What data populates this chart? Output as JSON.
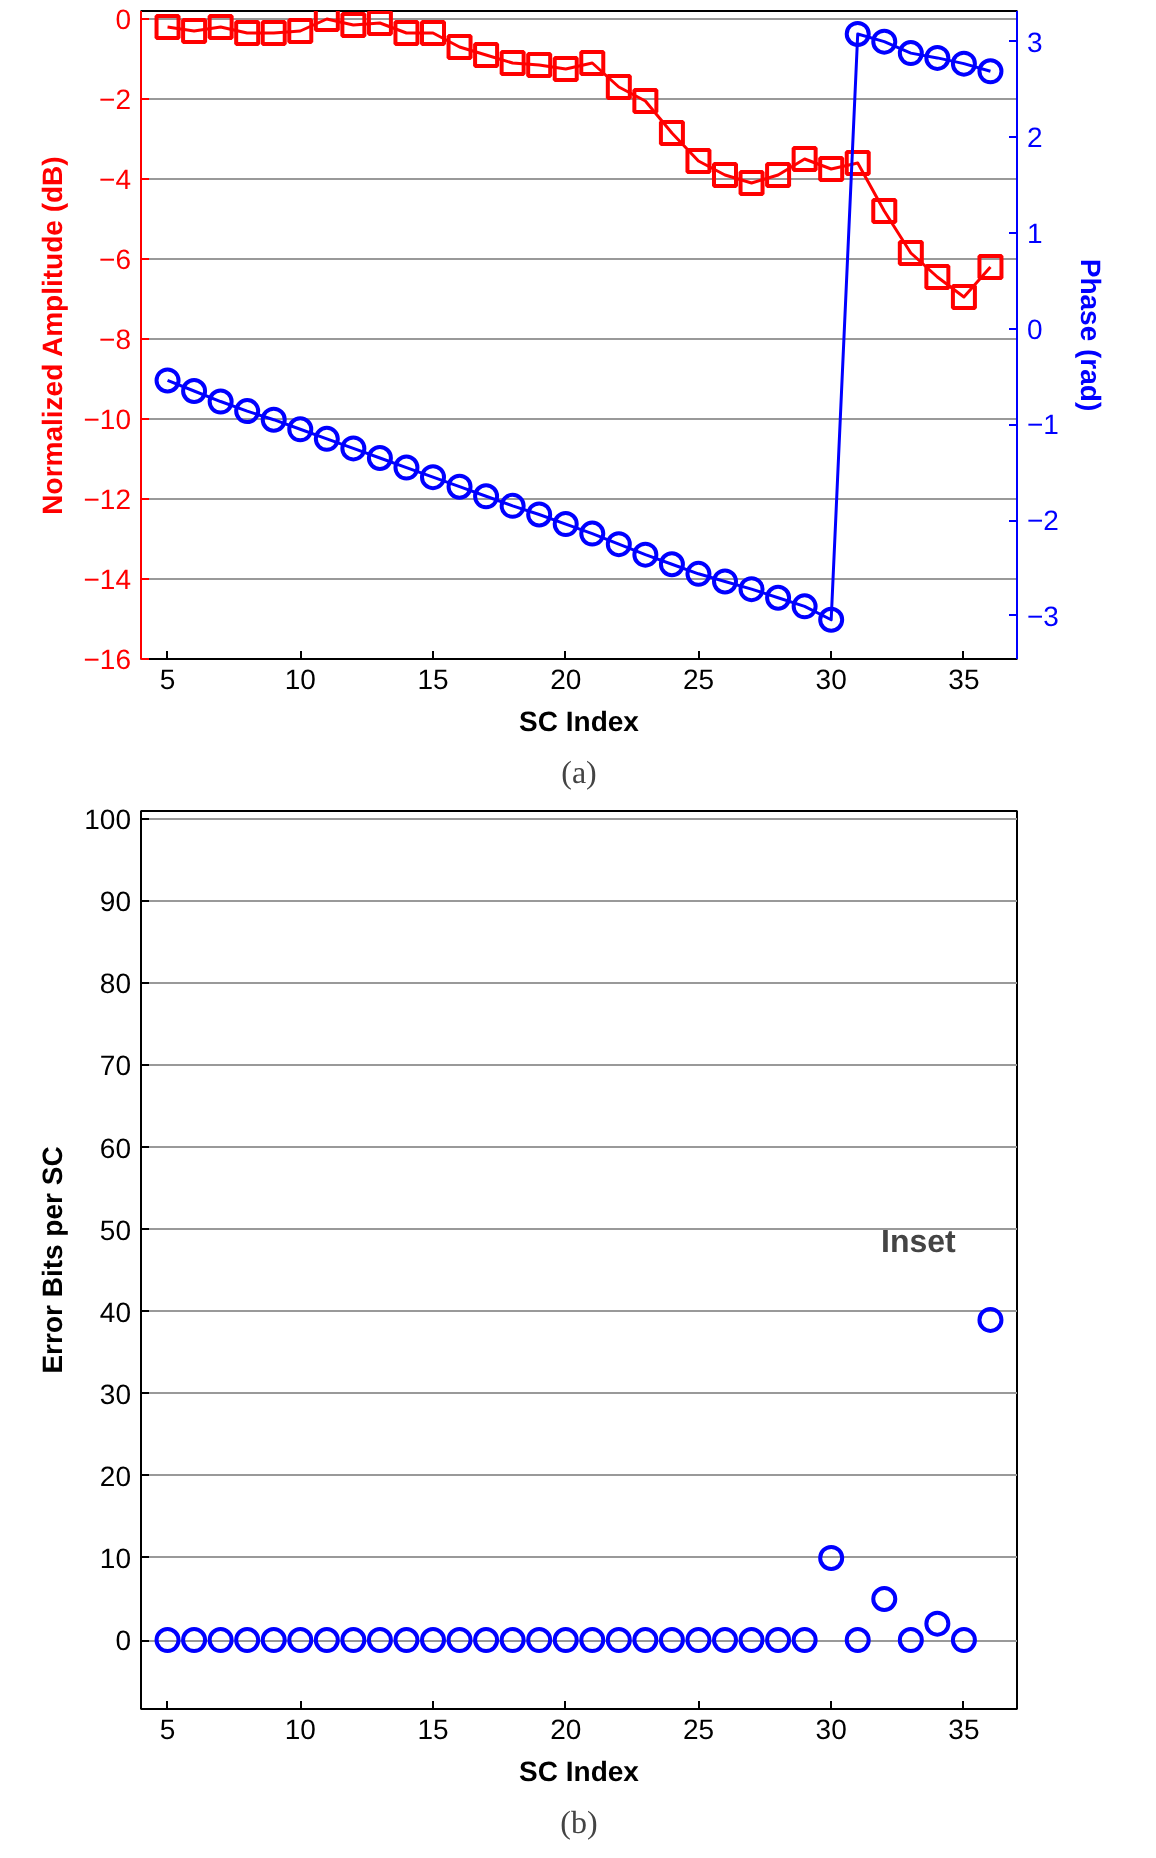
{
  "chart_data": [
    {
      "type": "line",
      "xlabel": "SC Index",
      "ylabel": "Normalized Amplitude (dB)",
      "y2label": "Phase (rad)",
      "x": [
        5,
        6,
        7,
        8,
        9,
        10,
        11,
        12,
        13,
        14,
        15,
        16,
        17,
        18,
        19,
        20,
        21,
        22,
        23,
        24,
        25,
        26,
        27,
        28,
        29,
        30,
        31,
        32,
        33,
        34,
        35,
        36
      ],
      "xlim": [
        4,
        37
      ],
      "xticks": [
        5,
        10,
        15,
        20,
        25,
        30,
        35
      ],
      "ylim": [
        -16,
        0.2
      ],
      "yticks": [
        -16,
        -14,
        -12,
        -10,
        -8,
        -6,
        -4,
        -2,
        0
      ],
      "y2lim": [
        -3.45,
        3.32
      ],
      "y2ticks": [
        -3,
        -2,
        -1,
        0,
        1,
        2,
        3
      ],
      "grid": "y",
      "annotations": [
        "(a)"
      ],
      "series": [
        {
          "color": "#ff0000",
          "marker": "square",
          "values": [
            -0.2,
            -0.3,
            -0.2,
            -0.35,
            -0.35,
            -0.3,
            0,
            -0.15,
            -0.1,
            -0.35,
            -0.35,
            -0.7,
            -0.9,
            -1.1,
            -1.15,
            -1.25,
            -1.1,
            -1.7,
            -2.05,
            -2.85,
            -3.55,
            -3.9,
            -4.1,
            -3.9,
            -3.5,
            -3.75,
            -3.6,
            -4.8,
            -5.85,
            -6.45,
            -6.95,
            -6.2
          ]
        },
        {
          "color": "#0000ff",
          "marker": "circle",
          "axis": "y2",
          "values": [
            -0.54,
            -0.65,
            -0.76,
            -0.86,
            -0.95,
            -1.05,
            -1.15,
            -1.25,
            -1.35,
            -1.45,
            -1.55,
            -1.65,
            -1.75,
            -1.85,
            -1.94,
            -2.04,
            -2.14,
            -2.25,
            -2.36,
            -2.46,
            -2.56,
            -2.64,
            -2.72,
            -2.81,
            -2.9,
            -3.04,
            3.08,
            3.0,
            2.88,
            2.83,
            2.77,
            2.69
          ]
        }
      ]
    },
    {
      "type": "scatter",
      "xlabel": "SC Index",
      "ylabel": "Error Bits per SC",
      "x": [
        5,
        6,
        7,
        8,
        9,
        10,
        11,
        12,
        13,
        14,
        15,
        16,
        17,
        18,
        19,
        20,
        21,
        22,
        23,
        24,
        25,
        26,
        27,
        28,
        29,
        30,
        31,
        32,
        33,
        34,
        35,
        36
      ],
      "xlim": [
        4,
        37
      ],
      "xticks": [
        5,
        10,
        15,
        20,
        25,
        30,
        35
      ],
      "ylim": [
        -8.4,
        101
      ],
      "yticks": [
        0,
        10,
        20,
        30,
        40,
        50,
        60,
        70,
        80,
        90,
        100
      ],
      "grid": "y",
      "marker": "circle",
      "annotations": [
        "Inset",
        "(b)"
      ],
      "series": [
        {
          "color": "#0000ff",
          "values": [
            0,
            0,
            0,
            0,
            0,
            0,
            0,
            0,
            0,
            0,
            0,
            0,
            0,
            0,
            0,
            0,
            0,
            0,
            0,
            0,
            0,
            0,
            0,
            0,
            0,
            10,
            0,
            5,
            0,
            2,
            0,
            39
          ]
        }
      ]
    }
  ]
}
